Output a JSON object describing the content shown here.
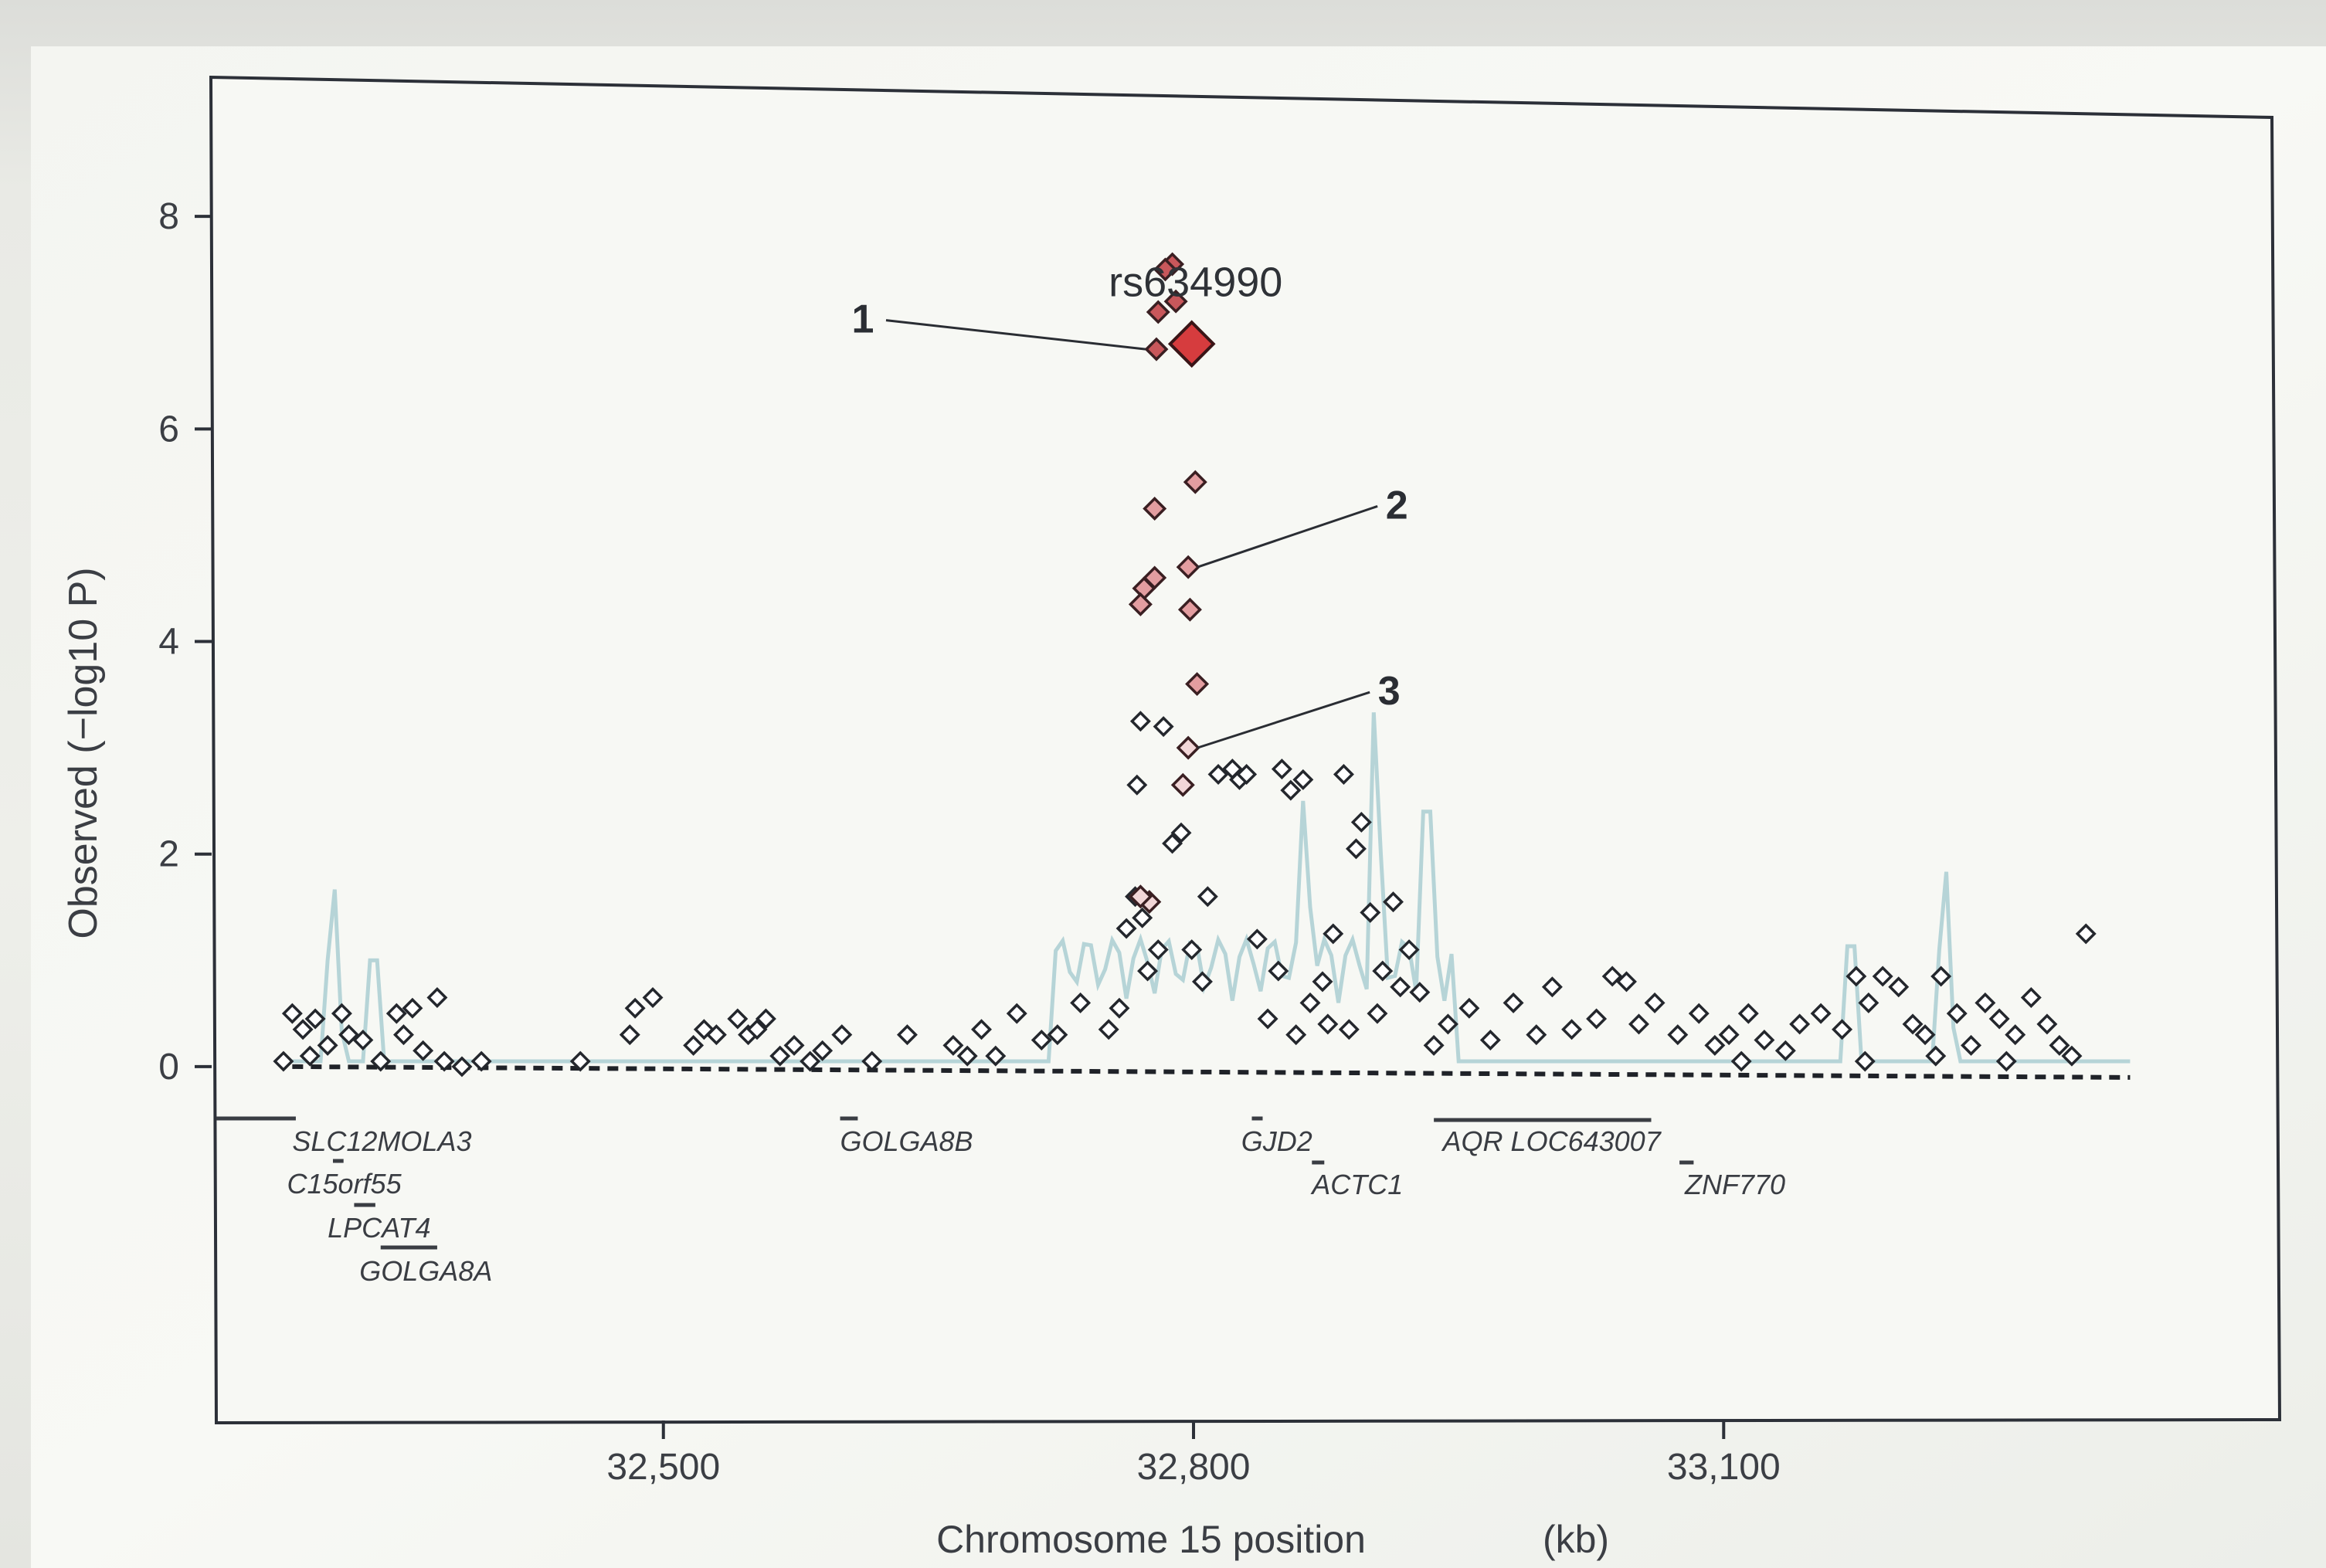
{
  "chart_data": {
    "type": "scatter",
    "xlabel": "Chromosome 15 position",
    "xunit": "(kb)",
    "ylabel": "Observed (−log10 P)",
    "xlim": [
      32247,
      33412
    ],
    "ylim": [
      -3.3,
      9.2
    ],
    "x_ticks": [
      32500,
      32800,
      33100
    ],
    "x_tick_labels": [
      "32,500",
      "32,800",
      "33,100"
    ],
    "y_ticks": [
      0,
      2,
      4,
      6,
      8
    ],
    "y_tick_labels": [
      "0",
      "2",
      "4",
      "6",
      "8"
    ],
    "baseline_y": 0,
    "lead_snp": {
      "label": "rs634990",
      "x": 32799,
      "y": 6.8
    },
    "annotations": [
      {
        "label": "1",
        "x": 32779,
        "y": 6.75
      },
      {
        "label": "2",
        "x": 32797,
        "y": 4.7
      },
      {
        "label": "3",
        "x": 32797,
        "y": 3.0
      }
    ],
    "highlighted_points": [
      {
        "x": 32788,
        "y": 7.55
      },
      {
        "x": 32784,
        "y": 7.5
      },
      {
        "x": 32780,
        "y": 7.1
      },
      {
        "x": 32790,
        "y": 7.2
      },
      {
        "x": 32779,
        "y": 6.75
      },
      {
        "x": 32801,
        "y": 5.5
      },
      {
        "x": 32778,
        "y": 5.25
      },
      {
        "x": 32772,
        "y": 4.5
      },
      {
        "x": 32770,
        "y": 4.35
      },
      {
        "x": 32778,
        "y": 4.6
      },
      {
        "x": 32797,
        "y": 4.7
      },
      {
        "x": 32798,
        "y": 4.3
      },
      {
        "x": 32802,
        "y": 3.6
      },
      {
        "x": 32797,
        "y": 3.0
      },
      {
        "x": 32794,
        "y": 2.65
      },
      {
        "x": 32775,
        "y": 1.55
      },
      {
        "x": 32770,
        "y": 1.6
      }
    ],
    "other_points": [
      [
        32290,
        0.5
      ],
      [
        32296,
        0.35
      ],
      [
        32303,
        0.45
      ],
      [
        32310,
        0.2
      ],
      [
        32318,
        0.5
      ],
      [
        32322,
        0.3
      ],
      [
        32300,
        0.1
      ],
      [
        32285,
        0.05
      ],
      [
        32330,
        0.25
      ],
      [
        32340,
        0.05
      ],
      [
        32349,
        0.5
      ],
      [
        32353,
        0.3
      ],
      [
        32358,
        0.55
      ],
      [
        32364,
        0.15
      ],
      [
        32372,
        0.65
      ],
      [
        32376,
        0.05
      ],
      [
        32386,
        0
      ],
      [
        32397,
        0.05
      ],
      [
        32453,
        0.05
      ],
      [
        32481,
        0.3
      ],
      [
        32484,
        0.55
      ],
      [
        32494,
        0.65
      ],
      [
        32517,
        0.2
      ],
      [
        32523,
        0.35
      ],
      [
        32530,
        0.3
      ],
      [
        32542,
        0.45
      ],
      [
        32548,
        0.3
      ],
      [
        32553,
        0.35
      ],
      [
        32558,
        0.45
      ],
      [
        32566,
        0.1
      ],
      [
        32574,
        0.2
      ],
      [
        32583,
        0.05
      ],
      [
        32590,
        0.15
      ],
      [
        32601,
        0.3
      ],
      [
        32618,
        0.05
      ],
      [
        32638,
        0.3
      ],
      [
        32664,
        0.2
      ],
      [
        32672,
        0.1
      ],
      [
        32680,
        0.35
      ],
      [
        32688,
        0.1
      ],
      [
        32700,
        0.5
      ],
      [
        32714,
        0.25
      ],
      [
        32723,
        0.3
      ],
      [
        32736,
        0.6
      ],
      [
        32752,
        0.35
      ],
      [
        32758,
        0.55
      ],
      [
        32762,
        1.3
      ],
      [
        32767,
        1.6
      ],
      [
        32771,
        1.4
      ],
      [
        32774,
        0.9
      ],
      [
        32780,
        1.1
      ],
      [
        32768,
        2.65
      ],
      [
        32770,
        3.25
      ],
      [
        32783,
        3.2
      ],
      [
        32788,
        2.1
      ],
      [
        32793,
        2.2
      ],
      [
        32799,
        1.1
      ],
      [
        32805,
        0.8
      ],
      [
        32808,
        1.6
      ],
      [
        32814,
        2.75
      ],
      [
        32822,
        2.8
      ],
      [
        32826,
        2.7
      ],
      [
        32830,
        2.75
      ],
      [
        32836,
        1.2
      ],
      [
        32850,
        2.8
      ],
      [
        32855,
        2.6
      ],
      [
        32862,
        2.7
      ],
      [
        32873,
        0.8
      ],
      [
        32879,
        1.25
      ],
      [
        32885,
        2.75
      ],
      [
        32892,
        2.05
      ],
      [
        32895,
        2.3
      ],
      [
        32900,
        1.45
      ],
      [
        32907,
        0.9
      ],
      [
        32913,
        1.55
      ],
      [
        32917,
        0.75
      ],
      [
        32922,
        1.1
      ],
      [
        32928,
        0.7
      ],
      [
        32842,
        0.45
      ],
      [
        32848,
        0.9
      ],
      [
        32858,
        0.3
      ],
      [
        32866,
        0.6
      ],
      [
        32876,
        0.4
      ],
      [
        32888,
        0.35
      ],
      [
        32904,
        0.5
      ],
      [
        32936,
        0.2
      ],
      [
        32944,
        0.4
      ],
      [
        32956,
        0.55
      ],
      [
        32968,
        0.25
      ],
      [
        32981,
        0.6
      ],
      [
        32994,
        0.3
      ],
      [
        33003,
        0.75
      ],
      [
        33014,
        0.35
      ],
      [
        33028,
        0.45
      ],
      [
        33037,
        0.85
      ],
      [
        33045,
        0.8
      ],
      [
        33052,
        0.4
      ],
      [
        33061,
        0.6
      ],
      [
        33074,
        0.3
      ],
      [
        33086,
        0.5
      ],
      [
        33095,
        0.2
      ],
      [
        33103,
        0.3
      ],
      [
        33114,
        0.5
      ],
      [
        33123,
        0.25
      ],
      [
        33135,
        0.15
      ],
      [
        33143,
        0.4
      ],
      [
        33155,
        0.5
      ],
      [
        33167,
        0.35
      ],
      [
        33175,
        0.85
      ],
      [
        33182,
        0.6
      ],
      [
        33190,
        0.85
      ],
      [
        33199,
        0.75
      ],
      [
        33207,
        0.4
      ],
      [
        33214,
        0.3
      ],
      [
        33223,
        0.85
      ],
      [
        33232,
        0.5
      ],
      [
        33240,
        0.2
      ],
      [
        33248,
        0.6
      ],
      [
        33256,
        0.45
      ],
      [
        33265,
        0.3
      ],
      [
        33274,
        0.65
      ],
      [
        33283,
        0.4
      ],
      [
        33290,
        0.2
      ],
      [
        33297,
        0.1
      ],
      [
        33305,
        1.25
      ],
      [
        33180,
        0.05
      ],
      [
        33220,
        0.1
      ],
      [
        33260,
        0.05
      ],
      [
        33110,
        0.05
      ]
    ],
    "recombination_peaks_kb": [
      32313,
      32336,
      32863,
      32903,
      32932,
      33172,
      33225
    ],
    "genes": [
      {
        "name": "SLC12MOLA3",
        "start": 32247,
        "end": 32292
      },
      {
        "name": "C15orf55",
        "start": 32313,
        "end": 32319
      },
      {
        "name": "LPCAT4",
        "start": 32325,
        "end": 32337
      },
      {
        "name": "GOLGA8A",
        "start": 32340,
        "end": 32372
      },
      {
        "name": "GOLGA8B",
        "start": 32600,
        "end": 32610
      },
      {
        "name": "GJD2",
        "start": 32833,
        "end": 32836
      },
      {
        "name": "ACTC1",
        "start": 32867,
        "end": 32874
      },
      {
        "name": "AQR LOC643007",
        "start": 32936,
        "end": 33059
      },
      {
        "name": "ZNF770",
        "start": 33075,
        "end": 33083
      }
    ],
    "colors": {
      "lead": "#d63c3e",
      "high": "#c8575b",
      "mid": "#e39da0",
      "low": "#f2d6d7",
      "none": "#ffffff",
      "recombination": "#aecfd4"
    }
  }
}
